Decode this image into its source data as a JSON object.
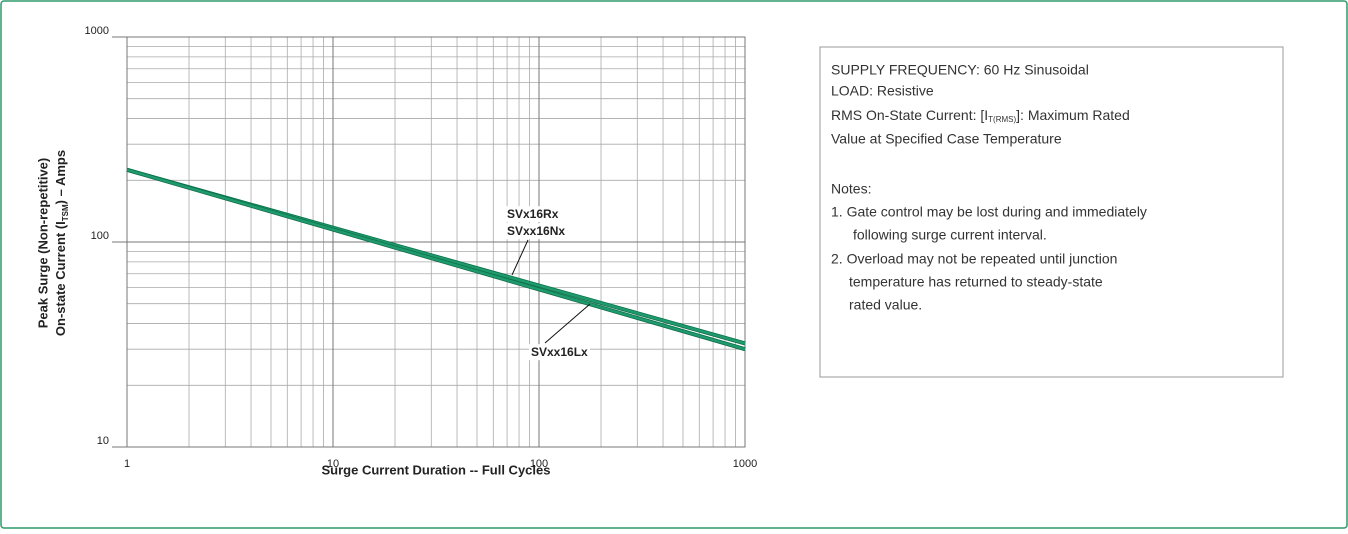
{
  "chart_data": {
    "type": "line",
    "xlabel": "Surge Current Duration -- Full Cycles",
    "ylabel": {
      "line1": "Peak Surge (Non-repetitive)",
      "line2": "On-state Current (I",
      "line2_sub": "TSM",
      "line2_tail": ") – Amps"
    },
    "x": [
      1,
      1000
    ],
    "series": [
      {
        "labels": [
          "SVx16Rx",
          "SVxx16Nx"
        ],
        "color": "#1e9a6c",
        "values": [
          225,
          32
        ]
      },
      {
        "labels": [
          "SVxx16Lx"
        ],
        "color": "#1e9a6c",
        "values": [
          225,
          30
        ]
      }
    ],
    "xlim": [
      1,
      1000
    ],
    "ylim": [
      10,
      1000
    ],
    "xticks": [
      1,
      10,
      100,
      1000
    ],
    "yticks": [
      10,
      100,
      1000
    ],
    "xscale": "log",
    "yscale": "log",
    "grid": true
  },
  "notes_box": {
    "lines": [
      "SUPPLY FREQUENCY: 60 Hz Sinusoidal",
      "LOAD: Resistive"
    ],
    "rms": {
      "text": "RMS On-State Current: [I",
      "sub": "T(RMS)",
      "tail": "]: Maximum Rated"
    },
    "rms_line2": "Value at Specified Case Temperature",
    "notes_title": "Notes:",
    "notes": [
      [
        "1. Gate control may be lost during and immediately",
        "following surge current interval."
      ],
      [
        "2. Overload may not be repeated until junction",
        "temperature has returned to steady-state",
        "rated value."
      ]
    ]
  }
}
